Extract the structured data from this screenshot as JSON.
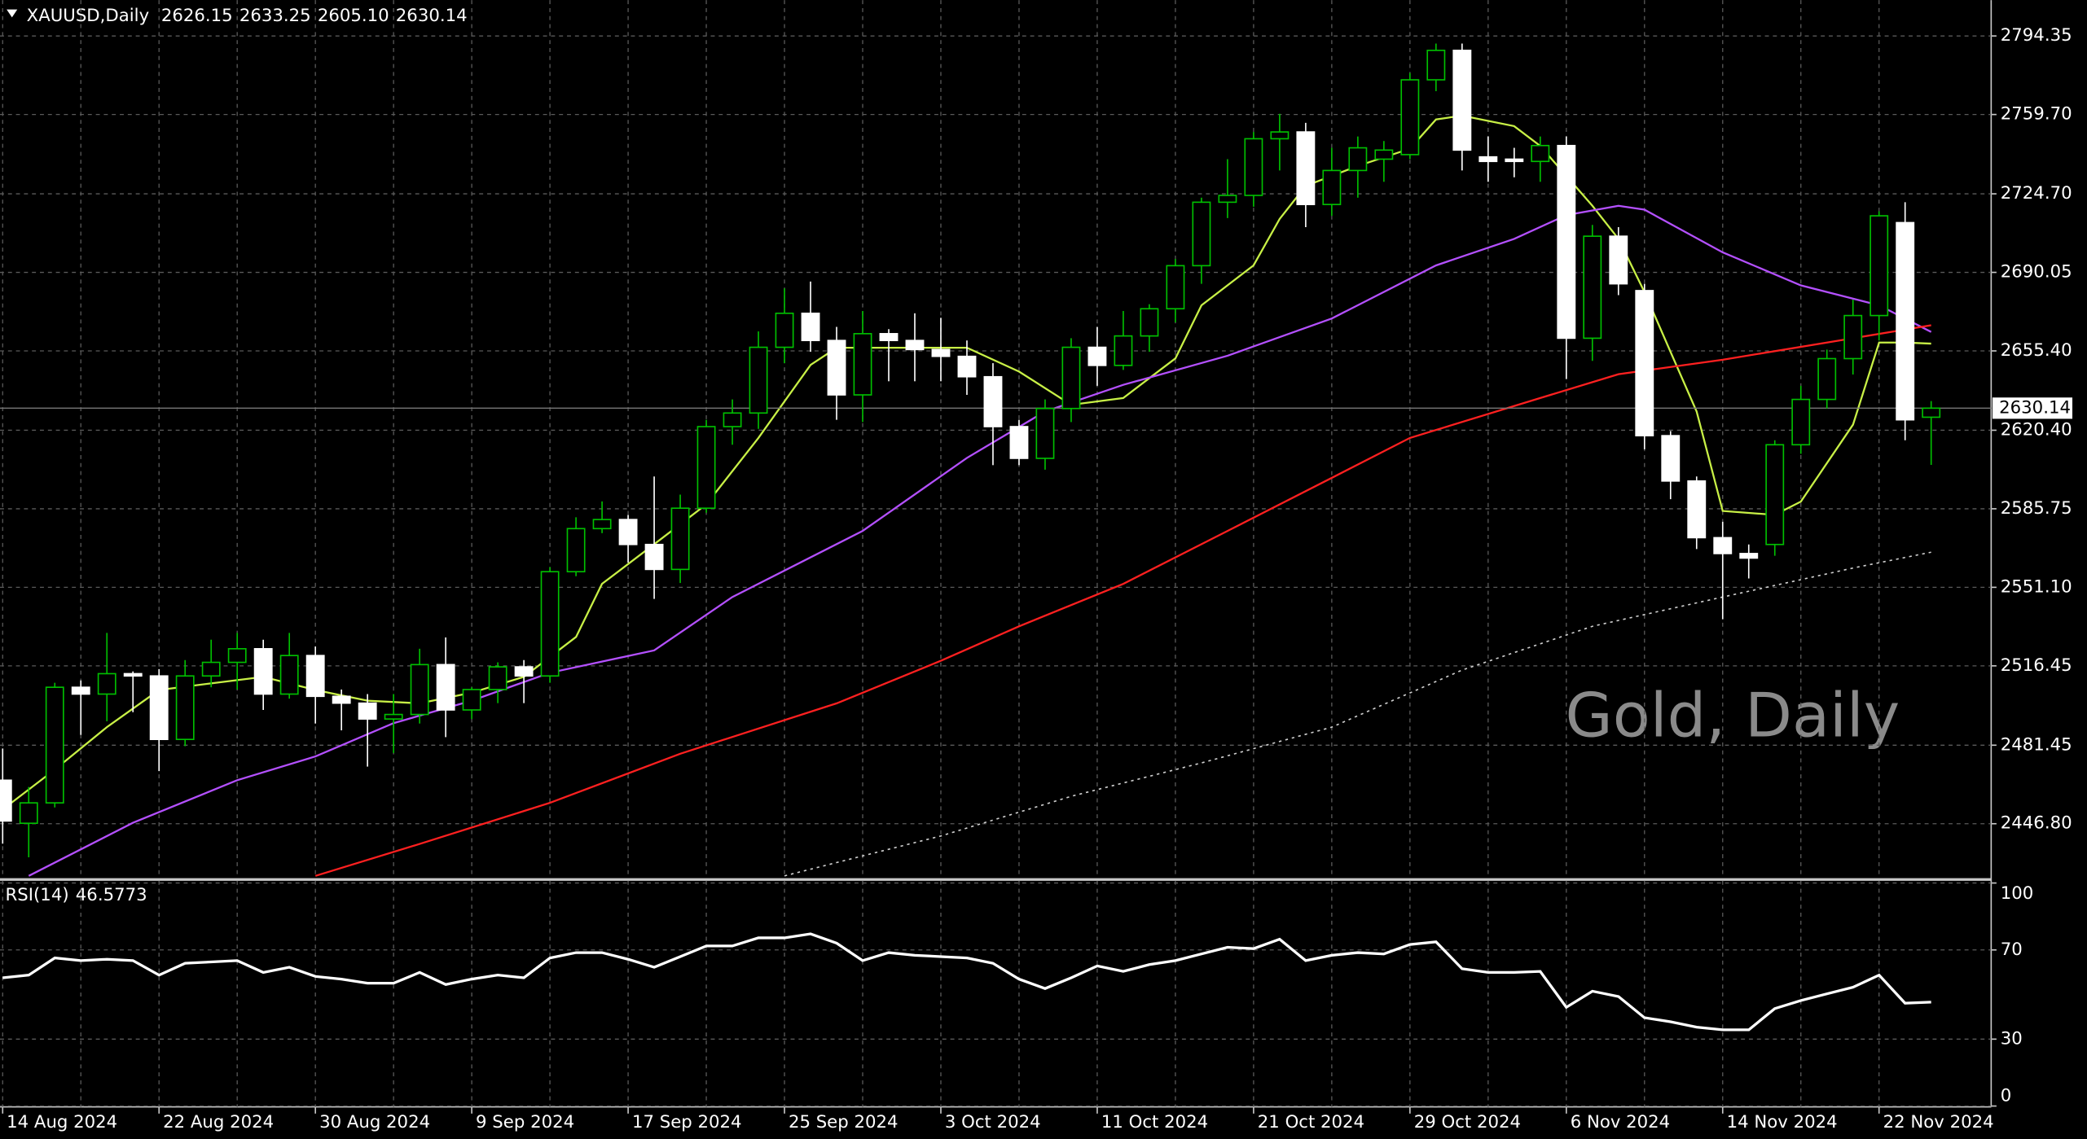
{
  "chart_data": {
    "type": "candlestick",
    "symbol": "XAUUSD,Daily",
    "last_labels": [
      "2626.15",
      "2633.25",
      "2605.10",
      "2630.14"
    ],
    "watermark": "Gold, Daily",
    "categories": [
      "14 Aug 2024",
      null,
      null,
      null,
      null,
      null,
      "22 Aug 2024",
      null,
      null,
      null,
      null,
      null,
      "30 Aug 2024",
      null,
      null,
      null,
      null,
      null,
      "9 Sep 2024",
      null,
      null,
      null,
      null,
      null,
      "17 Sep 2024",
      null,
      null,
      null,
      null,
      null,
      "25 Sep 2024",
      null,
      null,
      null,
      null,
      null,
      "3 Oct 2024",
      null,
      null,
      null,
      null,
      null,
      "11 Oct 2024",
      null,
      null,
      null,
      null,
      null,
      "21 Oct 2024",
      null,
      null,
      null,
      null,
      null,
      "29 Oct 2024",
      null,
      null,
      null,
      null,
      null,
      "6 Nov 2024",
      null,
      null,
      null,
      null,
      null,
      "14 Nov 2024",
      null,
      null,
      null,
      null,
      null,
      "22 Nov 2024",
      null,
      null
    ],
    "open": [
      2466,
      2447,
      2456,
      2507,
      2504,
      2513,
      2512,
      2484,
      2512,
      2518,
      2524,
      2504,
      2521,
      2503,
      2500,
      2493,
      2495,
      2517,
      2497,
      2506,
      2516,
      2512,
      2558,
      2577,
      2581,
      2570,
      2559,
      2586,
      2622,
      2628,
      2657,
      2672,
      2660,
      2636,
      2663,
      2660,
      2656,
      2653,
      2644,
      2622,
      2608,
      2630,
      2657,
      2649,
      2662,
      2674,
      2693,
      2721,
      2724,
      2749,
      2752,
      2720,
      2735,
      2740,
      2742,
      2775,
      2788,
      2741,
      2740,
      2739,
      2746,
      2661,
      2706,
      2682,
      2618,
      2598,
      2573,
      2566,
      2570,
      2614,
      2634,
      2652,
      2671,
      2712,
      2626.15
    ],
    "high": [
      2480,
      2463,
      2509,
      2510,
      2531,
      2514,
      2515,
      2519,
      2528,
      2531,
      2528,
      2531,
      2525,
      2506,
      2504,
      2504,
      2524,
      2529,
      2507,
      2518,
      2519,
      2560,
      2582,
      2589,
      2583,
      2600,
      2592,
      2625,
      2634,
      2664,
      2683,
      2686,
      2666,
      2673,
      2665,
      2672,
      2670,
      2660,
      2650,
      2625,
      2634,
      2661,
      2666,
      2673,
      2676,
      2696,
      2723,
      2740,
      2752,
      2760,
      2756,
      2745,
      2750,
      2748,
      2778,
      2791,
      2791,
      2750,
      2745,
      2750,
      2750,
      2711,
      2710,
      2685,
      2620,
      2600,
      2580,
      2570,
      2616,
      2640,
      2656,
      2678,
      2717,
      2721,
      2633.25
    ],
    "low": [
      2438,
      2432,
      2454,
      2486,
      2492,
      2496,
      2470,
      2481,
      2507,
      2506,
      2497,
      2502,
      2491,
      2488,
      2472,
      2478,
      2491,
      2485,
      2493,
      2500,
      2500,
      2509,
      2556,
      2575,
      2562,
      2546,
      2553,
      2584,
      2614,
      2621,
      2650,
      2655,
      2625,
      2624,
      2642,
      2642,
      2642,
      2636,
      2605,
      2605,
      2603,
      2624,
      2640,
      2647,
      2655,
      2668,
      2685,
      2714,
      2719,
      2735,
      2710,
      2715,
      2723,
      2730,
      2740,
      2770,
      2735,
      2730,
      2732,
      2730,
      2643,
      2651,
      2680,
      2612,
      2590,
      2568,
      2537,
      2555,
      2565,
      2610,
      2630,
      2645,
      2660,
      2616,
      2605.1
    ],
    "close": [
      2448,
      2456,
      2507,
      2504,
      2513,
      2512,
      2484,
      2512,
      2518,
      2524,
      2504,
      2521,
      2503,
      2500,
      2493,
      2495,
      2517,
      2497,
      2506,
      2516,
      2512,
      2558,
      2577,
      2581,
      2570,
      2559,
      2586,
      2622,
      2628,
      2657,
      2672,
      2660,
      2636,
      2663,
      2660,
      2656,
      2653,
      2644,
      2622,
      2608,
      2630,
      2657,
      2649,
      2662,
      2674,
      2693,
      2721,
      2724,
      2749,
      2752,
      2720,
      2735,
      2745,
      2744,
      2775,
      2788,
      2744,
      2739,
      2739,
      2746,
      2661,
      2706,
      2685,
      2618,
      2598,
      2573,
      2566,
      2564,
      2614,
      2634,
      2652,
      2671,
      2715,
      2625,
      2630.14
    ],
    "up_color": "#00c000",
    "down_color": "#ffffff",
    "ylim": [
      2422.8,
      2810.15
    ],
    "yticks": [
      2794.35,
      {
        "value": 2759.7,
        "label": "2759.70"
      },
      {
        "value": 2724.7,
        "label": "2724.70"
      },
      2690.05,
      {
        "value": 2655.4,
        "label": "2655.40"
      },
      {
        "value": 2620.4,
        "label": "2620.40"
      },
      2585.75,
      {
        "value": 2551.1,
        "label": "2551.10"
      },
      2516.45,
      2481.45,
      {
        "value": 2446.8,
        "label": "2446.80"
      }
    ],
    "grid": true,
    "moving_averages": [
      {
        "color": "#c8f046",
        "dash": false,
        "x": [
          0,
          2,
          4,
          6,
          8,
          10,
          12,
          14,
          16,
          18,
          20,
          22,
          23,
          25,
          27,
          29,
          31,
          32,
          35,
          37,
          39,
          41,
          43,
          45,
          46,
          48,
          49,
          50,
          52,
          54,
          55,
          56,
          58,
          59,
          61,
          62,
          63,
          64,
          65,
          66,
          68,
          69,
          71,
          72,
          73,
          74
        ],
        "values": [
          2453.1,
          2470.7,
          2489.4,
          2505.8,
          2508.7,
          2511.6,
          2505.8,
          2501.1,
          2499.9,
          2504.6,
          2511.6,
          2529.2,
          2552.6,
          2570.1,
          2587.7,
          2617.0,
          2649.2,
          2656.8,
          2656.8,
          2656.8,
          2646.3,
          2631.6,
          2634.6,
          2652.1,
          2675.5,
          2693.1,
          2713.6,
          2728.2,
          2737.0,
          2744.6,
          2757.5,
          2759.2,
          2754.6,
          2745.8,
          2719.4,
          2704.8,
          2681.4,
          2655.0,
          2628.7,
          2584.8,
          2583.1,
          2588.9,
          2622.9,
          2659.1,
          2659.1,
          2658.6
        ]
      },
      {
        "color": "#b450ff",
        "dash": false,
        "x": [
          1,
          5,
          9,
          12,
          15,
          18,
          21,
          25,
          28,
          33,
          37,
          40,
          43,
          47,
          51,
          55,
          58,
          60,
          62,
          63,
          66,
          69,
          72,
          74
        ],
        "values": [
          2423.8,
          2447.2,
          2466.0,
          2476.5,
          2491.2,
          2501.1,
          2513.4,
          2523.3,
          2546.8,
          2576.0,
          2608.2,
          2628.7,
          2640.4,
          2653.3,
          2669.7,
          2693.1,
          2704.8,
          2715.3,
          2719.4,
          2717.7,
          2698.9,
          2684.3,
          2675.5,
          2663.8
        ]
      },
      {
        "color": "#ff2020",
        "dash": false,
        "x": [
          12,
          16,
          21,
          26,
          32,
          36,
          39,
          43,
          47,
          51,
          54,
          59,
          62,
          66,
          70,
          74
        ],
        "values": [
          2423.8,
          2437.9,
          2456.0,
          2477.7,
          2499.9,
          2518.7,
          2533.9,
          2552.6,
          2576.0,
          2599.4,
          2617.0,
          2634.6,
          2645.1,
          2651.5,
          2659.1,
          2666.7
        ]
      },
      {
        "color": "#d0d0d0",
        "dash": true,
        "x": [
          30,
          36,
          41,
          46,
          51,
          56,
          61,
          66,
          71,
          74
        ],
        "values": [
          2423.8,
          2441.4,
          2458.9,
          2473.6,
          2489.4,
          2514.6,
          2533.9,
          2546.8,
          2559.6,
          2566.6
        ]
      }
    ],
    "rsi": {
      "label": "RSI(14)",
      "color": "#ffffff",
      "values": [
        57.5,
        58.7,
        66.4,
        65.2,
        65.8,
        65.2,
        58.7,
        64.0,
        64.6,
        65.2,
        59.9,
        62.2,
        58.1,
        56.9,
        55.1,
        55.1,
        59.9,
        54.5,
        56.9,
        58.7,
        57.5,
        66.4,
        68.8,
        68.8,
        65.8,
        62.2,
        67.0,
        71.8,
        71.8,
        75.4,
        75.4,
        77.2,
        73.0,
        65.2,
        68.8,
        67.6,
        67.0,
        66.4,
        64.0,
        56.9,
        52.7,
        57.5,
        62.8,
        60.4,
        63.4,
        65.2,
        68.2,
        71.2,
        70.6,
        74.8,
        65.2,
        67.6,
        68.8,
        68.2,
        72.4,
        73.6,
        61.6,
        59.9,
        59.9,
        60.4,
        44.3,
        51.5,
        49.1,
        39.6,
        37.8,
        35.4,
        34.2,
        34.2,
        43.7,
        47.3,
        50.3,
        53.3,
        58.7,
        46.1,
        46.5773
      ],
      "ylim": [
        -0.4,
        101
      ],
      "yticks": [
        100,
        70,
        30,
        0
      ]
    }
  }
}
